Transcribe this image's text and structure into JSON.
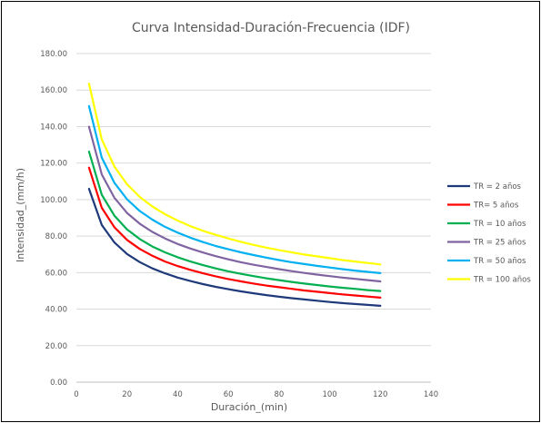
{
  "chart_data": {
    "type": "line",
    "title": "Curva Intensidad-Duración-Frecuencia (IDF)",
    "xlabel": "Duración_(min)",
    "ylabel": "Intensidad_(mm/h)",
    "xlim": [
      0,
      140
    ],
    "ylim": [
      0,
      180
    ],
    "x_ticks": [
      0,
      20,
      40,
      60,
      80,
      100,
      120,
      140
    ],
    "x_tick_labels": [
      "0",
      "20",
      "40",
      "60",
      "80",
      "100",
      "120",
      "140"
    ],
    "y_ticks": [
      0,
      20,
      40,
      60,
      80,
      100,
      120,
      140,
      160,
      180
    ],
    "y_tick_labels": [
      "0.00",
      "20.00",
      "40.00",
      "60.00",
      "80.00",
      "100.00",
      "120.00",
      "140.00",
      "160.00",
      "180.00"
    ],
    "grid": "horizontal",
    "legend_position": "right",
    "x": [
      5,
      10,
      15,
      20,
      25,
      30,
      35,
      40,
      45,
      50,
      55,
      60,
      65,
      70,
      75,
      80,
      85,
      90,
      95,
      100,
      105,
      110,
      115,
      120
    ],
    "series": [
      {
        "name": "TR = 2 años",
        "color": "#1f3a7a",
        "values": [
          105.9,
          86.1,
          76.5,
          70.2,
          65.8,
          62.3,
          59.6,
          57.3,
          55.4,
          53.7,
          52.2,
          50.9,
          49.7,
          48.7,
          47.7,
          46.8,
          46.0,
          45.3,
          44.6,
          43.9,
          43.3,
          42.8,
          42.3,
          41.8
        ]
      },
      {
        "name": "TR= 5 años",
        "color": "#ff0000",
        "values": [
          117.5,
          95.5,
          84.9,
          77.9,
          73.0,
          69.2,
          66.1,
          63.6,
          61.5,
          59.6,
          58.0,
          56.5,
          55.2,
          54.0,
          52.9,
          52.0,
          51.1,
          50.2,
          49.5,
          48.8,
          48.1,
          47.5,
          46.9,
          46.3
        ]
      },
      {
        "name": "TR = 10 años",
        "color": "#00b050",
        "values": [
          126.3,
          102.7,
          91.2,
          83.7,
          78.4,
          74.3,
          71.1,
          68.4,
          66.1,
          64.1,
          62.3,
          60.7,
          59.3,
          58.1,
          56.9,
          55.9,
          54.9,
          54.0,
          53.2,
          52.4,
          51.7,
          51.1,
          50.4,
          49.9
        ]
      },
      {
        "name": "TR = 25 años",
        "color": "#8064a2",
        "values": [
          139.9,
          113.8,
          101.0,
          92.7,
          86.8,
          82.3,
          78.7,
          75.7,
          73.2,
          71.0,
          69.0,
          67.3,
          65.7,
          64.3,
          63.1,
          61.9,
          60.8,
          59.8,
          58.9,
          58.1,
          57.3,
          56.6,
          55.9,
          55.2
        ]
      },
      {
        "name": "TR = 50 años",
        "color": "#00b0f0",
        "values": [
          151.2,
          123.0,
          109.2,
          100.2,
          93.8,
          89.0,
          85.1,
          81.9,
          79.1,
          76.7,
          74.6,
          72.8,
          71.1,
          69.6,
          68.2,
          66.9,
          65.7,
          64.7,
          63.7,
          62.8,
          61.9,
          61.1,
          60.4,
          59.7
        ]
      },
      {
        "name": "TR = 100 años",
        "color": "#ffff00",
        "values": [
          163.5,
          133.0,
          118.1,
          108.4,
          101.5,
          96.2,
          92.0,
          88.5,
          85.5,
          82.9,
          80.7,
          78.7,
          76.8,
          75.2,
          73.7,
          72.3,
          71.1,
          69.9,
          68.9,
          67.9,
          66.9,
          66.1,
          65.3,
          64.5
        ]
      }
    ]
  }
}
